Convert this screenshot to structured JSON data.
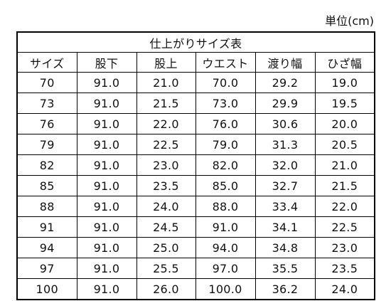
{
  "unit_label": "単位(cm)",
  "table": {
    "title": "仕上がりサイズ表",
    "headers": [
      "サイズ",
      "股下",
      "股上",
      "ウエスト",
      "渡り幅",
      "ひざ幅"
    ],
    "rows": [
      [
        "70",
        "91.0",
        "21.0",
        "70.0",
        "29.2",
        "19.0"
      ],
      [
        "73",
        "91.0",
        "21.5",
        "73.0",
        "29.9",
        "19.5"
      ],
      [
        "76",
        "91.0",
        "22.0",
        "76.0",
        "30.6",
        "20.0"
      ],
      [
        "79",
        "91.0",
        "22.5",
        "79.0",
        "31.3",
        "20.5"
      ],
      [
        "82",
        "91.0",
        "23.0",
        "82.0",
        "32.0",
        "21.0"
      ],
      [
        "85",
        "91.0",
        "23.5",
        "85.0",
        "32.7",
        "21.5"
      ],
      [
        "88",
        "91.0",
        "24.0",
        "88.0",
        "33.4",
        "22.0"
      ],
      [
        "91",
        "91.0",
        "24.5",
        "91.0",
        "34.1",
        "22.5"
      ],
      [
        "94",
        "91.0",
        "25.0",
        "94.0",
        "34.8",
        "23.0"
      ],
      [
        "97",
        "91.0",
        "25.5",
        "97.0",
        "35.5",
        "23.5"
      ],
      [
        "100",
        "91.0",
        "26.0",
        "100.0",
        "36.2",
        "24.0"
      ]
    ]
  }
}
